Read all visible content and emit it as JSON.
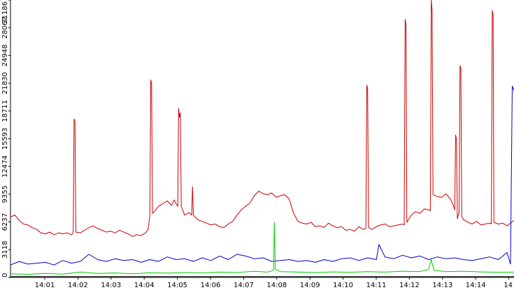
{
  "chart_data": {
    "type": "line",
    "title": "",
    "xlabel": "",
    "ylabel": "",
    "ylim": [
      0,
      31186
    ],
    "yticks": [
      "0",
      "3118",
      "6237",
      "9355",
      "12474",
      "15593",
      "18711",
      "21830",
      "24948",
      "28067",
      "31186"
    ],
    "xticks": [
      "14:01",
      "14:02",
      "14:03",
      "14:04",
      "14:05",
      "14:06",
      "14:07",
      "14:08",
      "14:09",
      "14:10",
      "14:11",
      "14:12",
      "14:13",
      "14:14",
      "14"
    ],
    "grid": false,
    "legend": "none",
    "series": [
      {
        "color": "#cc0000",
        "values": [
          [
            0,
            6800
          ],
          [
            5,
            7000
          ],
          [
            10,
            6400
          ],
          [
            15,
            6000
          ],
          [
            20,
            5900
          ],
          [
            25,
            5600
          ],
          [
            30,
            5400
          ],
          [
            35,
            5000
          ],
          [
            40,
            4900
          ],
          [
            45,
            5100
          ],
          [
            50,
            4800
          ],
          [
            55,
            5000
          ],
          [
            60,
            4900
          ],
          [
            65,
            5000
          ],
          [
            70,
            4800
          ],
          [
            72,
            5000
          ],
          [
            73,
            17800
          ],
          [
            74,
            17600
          ],
          [
            75,
            5100
          ],
          [
            80,
            5000
          ],
          [
            85,
            5300
          ],
          [
            90,
            5600
          ],
          [
            95,
            5800
          ],
          [
            100,
            5500
          ],
          [
            105,
            5300
          ],
          [
            110,
            5100
          ],
          [
            115,
            5200
          ],
          [
            120,
            5000
          ],
          [
            125,
            5300
          ],
          [
            130,
            5100
          ],
          [
            135,
            4900
          ],
          [
            140,
            4600
          ],
          [
            145,
            4800
          ],
          [
            150,
            4700
          ],
          [
            155,
            5000
          ],
          [
            158,
            5400
          ],
          [
            160,
            7000
          ],
          [
            161,
            22200
          ],
          [
            162,
            21800
          ],
          [
            163,
            7200
          ],
          [
            165,
            7400
          ],
          [
            170,
            8000
          ],
          [
            175,
            8300
          ],
          [
            180,
            8600
          ],
          [
            185,
            8100
          ],
          [
            188,
            8700
          ],
          [
            190,
            8300
          ],
          [
            192,
            8000
          ],
          [
            193,
            19000
          ],
          [
            194,
            18000
          ],
          [
            195,
            18500
          ],
          [
            196,
            8000
          ],
          [
            200,
            7000
          ],
          [
            205,
            7300
          ],
          [
            208,
            7000
          ],
          [
            209,
            10200
          ],
          [
            210,
            7000
          ],
          [
            215,
            6500
          ],
          [
            220,
            6300
          ],
          [
            225,
            6100
          ],
          [
            230,
            5900
          ],
          [
            235,
            6000
          ],
          [
            240,
            5700
          ],
          [
            245,
            5600
          ],
          [
            250,
            6000
          ],
          [
            255,
            6300
          ],
          [
            260,
            7000
          ],
          [
            265,
            7600
          ],
          [
            270,
            8000
          ],
          [
            275,
            8400
          ],
          [
            280,
            9200
          ],
          [
            285,
            9700
          ],
          [
            290,
            9400
          ],
          [
            295,
            9300
          ],
          [
            300,
            9500
          ],
          [
            305,
            9000
          ],
          [
            310,
            9200
          ],
          [
            315,
            9300
          ],
          [
            320,
            8800
          ],
          [
            325,
            7200
          ],
          [
            330,
            6300
          ],
          [
            335,
            6100
          ],
          [
            340,
            6000
          ],
          [
            345,
            6200
          ],
          [
            350,
            5700
          ],
          [
            355,
            5800
          ],
          [
            360,
            5600
          ],
          [
            365,
            6100
          ],
          [
            370,
            5800
          ],
          [
            375,
            5600
          ],
          [
            380,
            5700
          ],
          [
            385,
            5300
          ],
          [
            390,
            5400
          ],
          [
            395,
            5200
          ],
          [
            400,
            5700
          ],
          [
            405,
            5400
          ],
          [
            408,
            5500
          ],
          [
            409,
            21600
          ],
          [
            410,
            21200
          ],
          [
            411,
            5600
          ],
          [
            415,
            5400
          ],
          [
            420,
            5700
          ],
          [
            425,
            5900
          ],
          [
            430,
            6000
          ],
          [
            435,
            5700
          ],
          [
            440,
            5800
          ],
          [
            445,
            5900
          ],
          [
            450,
            6000
          ],
          [
            452,
            5900
          ],
          [
            453,
            29000
          ],
          [
            454,
            28500
          ],
          [
            455,
            6200
          ],
          [
            460,
            7000
          ],
          [
            465,
            7400
          ],
          [
            470,
            7200
          ],
          [
            475,
            7700
          ],
          [
            480,
            7600
          ],
          [
            482,
            7500
          ],
          [
            483,
            31186
          ],
          [
            484,
            30000
          ],
          [
            485,
            9300
          ],
          [
            490,
            9100
          ],
          [
            495,
            9000
          ],
          [
            500,
            9400
          ],
          [
            505,
            8800
          ],
          [
            508,
            8200
          ],
          [
            510,
            7600
          ],
          [
            511,
            16000
          ],
          [
            512,
            15500
          ],
          [
            513,
            6600
          ],
          [
            514,
            7000
          ],
          [
            515,
            7200
          ],
          [
            516,
            23800
          ],
          [
            517,
            23500
          ],
          [
            518,
            6800
          ],
          [
            520,
            6500
          ],
          [
            525,
            6200
          ],
          [
            530,
            6000
          ],
          [
            535,
            6300
          ],
          [
            540,
            5900
          ],
          [
            545,
            6000
          ],
          [
            550,
            6100
          ],
          [
            552,
            6000
          ],
          [
            553,
            30000
          ],
          [
            554,
            29500
          ],
          [
            555,
            6200
          ],
          [
            560,
            6000
          ],
          [
            565,
            6100
          ],
          [
            570,
            5800
          ],
          [
            575,
            6200
          ],
          [
            578,
            6400
          ]
        ]
      },
      {
        "color": "#0000cc",
        "values": [
          [
            0,
            1400
          ],
          [
            10,
            1800
          ],
          [
            20,
            1500
          ],
          [
            30,
            1600
          ],
          [
            40,
            1700
          ],
          [
            50,
            1400
          ],
          [
            60,
            1900
          ],
          [
            70,
            1600
          ],
          [
            80,
            1800
          ],
          [
            90,
            2600
          ],
          [
            100,
            2000
          ],
          [
            110,
            1800
          ],
          [
            120,
            2100
          ],
          [
            130,
            1900
          ],
          [
            140,
            2000
          ],
          [
            150,
            1700
          ],
          [
            160,
            2000
          ],
          [
            170,
            1800
          ],
          [
            180,
            2300
          ],
          [
            190,
            2000
          ],
          [
            200,
            2100
          ],
          [
            210,
            1800
          ],
          [
            220,
            2200
          ],
          [
            230,
            1900
          ],
          [
            240,
            2400
          ],
          [
            250,
            2000
          ],
          [
            260,
            2600
          ],
          [
            270,
            2400
          ],
          [
            280,
            2100
          ],
          [
            290,
            2200
          ],
          [
            300,
            1800
          ],
          [
            310,
            1900
          ],
          [
            320,
            2000
          ],
          [
            330,
            1800
          ],
          [
            340,
            1900
          ],
          [
            350,
            1700
          ],
          [
            360,
            2000
          ],
          [
            370,
            1800
          ],
          [
            380,
            2100
          ],
          [
            390,
            2200
          ],
          [
            400,
            1900
          ],
          [
            410,
            2200
          ],
          [
            420,
            2000
          ],
          [
            423,
            3700
          ],
          [
            430,
            2300
          ],
          [
            440,
            2100
          ],
          [
            450,
            2500
          ],
          [
            460,
            2200
          ],
          [
            470,
            2400
          ],
          [
            480,
            2000
          ],
          [
            490,
            2300
          ],
          [
            500,
            2100
          ],
          [
            510,
            2200
          ],
          [
            520,
            2000
          ],
          [
            530,
            1900
          ],
          [
            540,
            2100
          ],
          [
            550,
            2300
          ],
          [
            560,
            2000
          ],
          [
            570,
            2800
          ],
          [
            574,
            1500
          ],
          [
            576,
            21500
          ],
          [
            578,
            21000
          ]
        ]
      },
      {
        "color": "#00cc00",
        "values": [
          [
            0,
            400
          ],
          [
            20,
            350
          ],
          [
            40,
            450
          ],
          [
            60,
            380
          ],
          [
            80,
            600
          ],
          [
            100,
            450
          ],
          [
            120,
            500
          ],
          [
            140,
            420
          ],
          [
            160,
            520
          ],
          [
            180,
            480
          ],
          [
            200,
            550
          ],
          [
            220,
            500
          ],
          [
            240,
            600
          ],
          [
            260,
            550
          ],
          [
            280,
            700
          ],
          [
            295,
            600
          ],
          [
            302,
            800
          ],
          [
            303,
            6200
          ],
          [
            304,
            900
          ],
          [
            310,
            650
          ],
          [
            330,
            600
          ],
          [
            350,
            550
          ],
          [
            370,
            620
          ],
          [
            390,
            580
          ],
          [
            410,
            650
          ],
          [
            430,
            600
          ],
          [
            450,
            700
          ],
          [
            470,
            650
          ],
          [
            480,
            900
          ],
          [
            483,
            2000
          ],
          [
            486,
            800
          ],
          [
            500,
            650
          ],
          [
            520,
            700
          ],
          [
            540,
            620
          ],
          [
            560,
            580
          ],
          [
            578,
            600
          ]
        ]
      },
      {
        "color": "#000000",
        "values": [
          [
            0,
            100
          ],
          [
            578,
            100
          ]
        ]
      }
    ]
  }
}
